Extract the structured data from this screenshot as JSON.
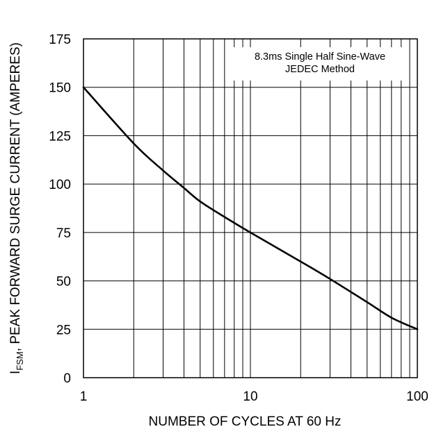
{
  "chart_data": {
    "type": "line",
    "xscale": "log",
    "xlim": [
      1,
      100
    ],
    "ylim": [
      0,
      175
    ],
    "grid": true,
    "x_ticks": [
      1,
      10,
      100
    ],
    "y_ticks": [
      0,
      25,
      50,
      75,
      100,
      125,
      150,
      175
    ],
    "xlabel": "NUMBER OF CYCLES AT 60 Hz",
    "ylabel_main": "I",
    "ylabel_sub": "FSM",
    "ylabel_rest": ", PEAK FORWARD SURGE CURRENT (AMPERES)",
    "annotation": [
      "8.3ms Single Half Sine-Wave",
      "JEDEC Method"
    ],
    "series": [
      {
        "x": [
          1,
          2,
          3,
          4,
          5,
          7,
          10,
          20,
          30,
          50,
          70,
          100
        ],
        "y": [
          150,
          121,
          107,
          98,
          91,
          83,
          75,
          60,
          51,
          39,
          31,
          25
        ]
      }
    ]
  }
}
